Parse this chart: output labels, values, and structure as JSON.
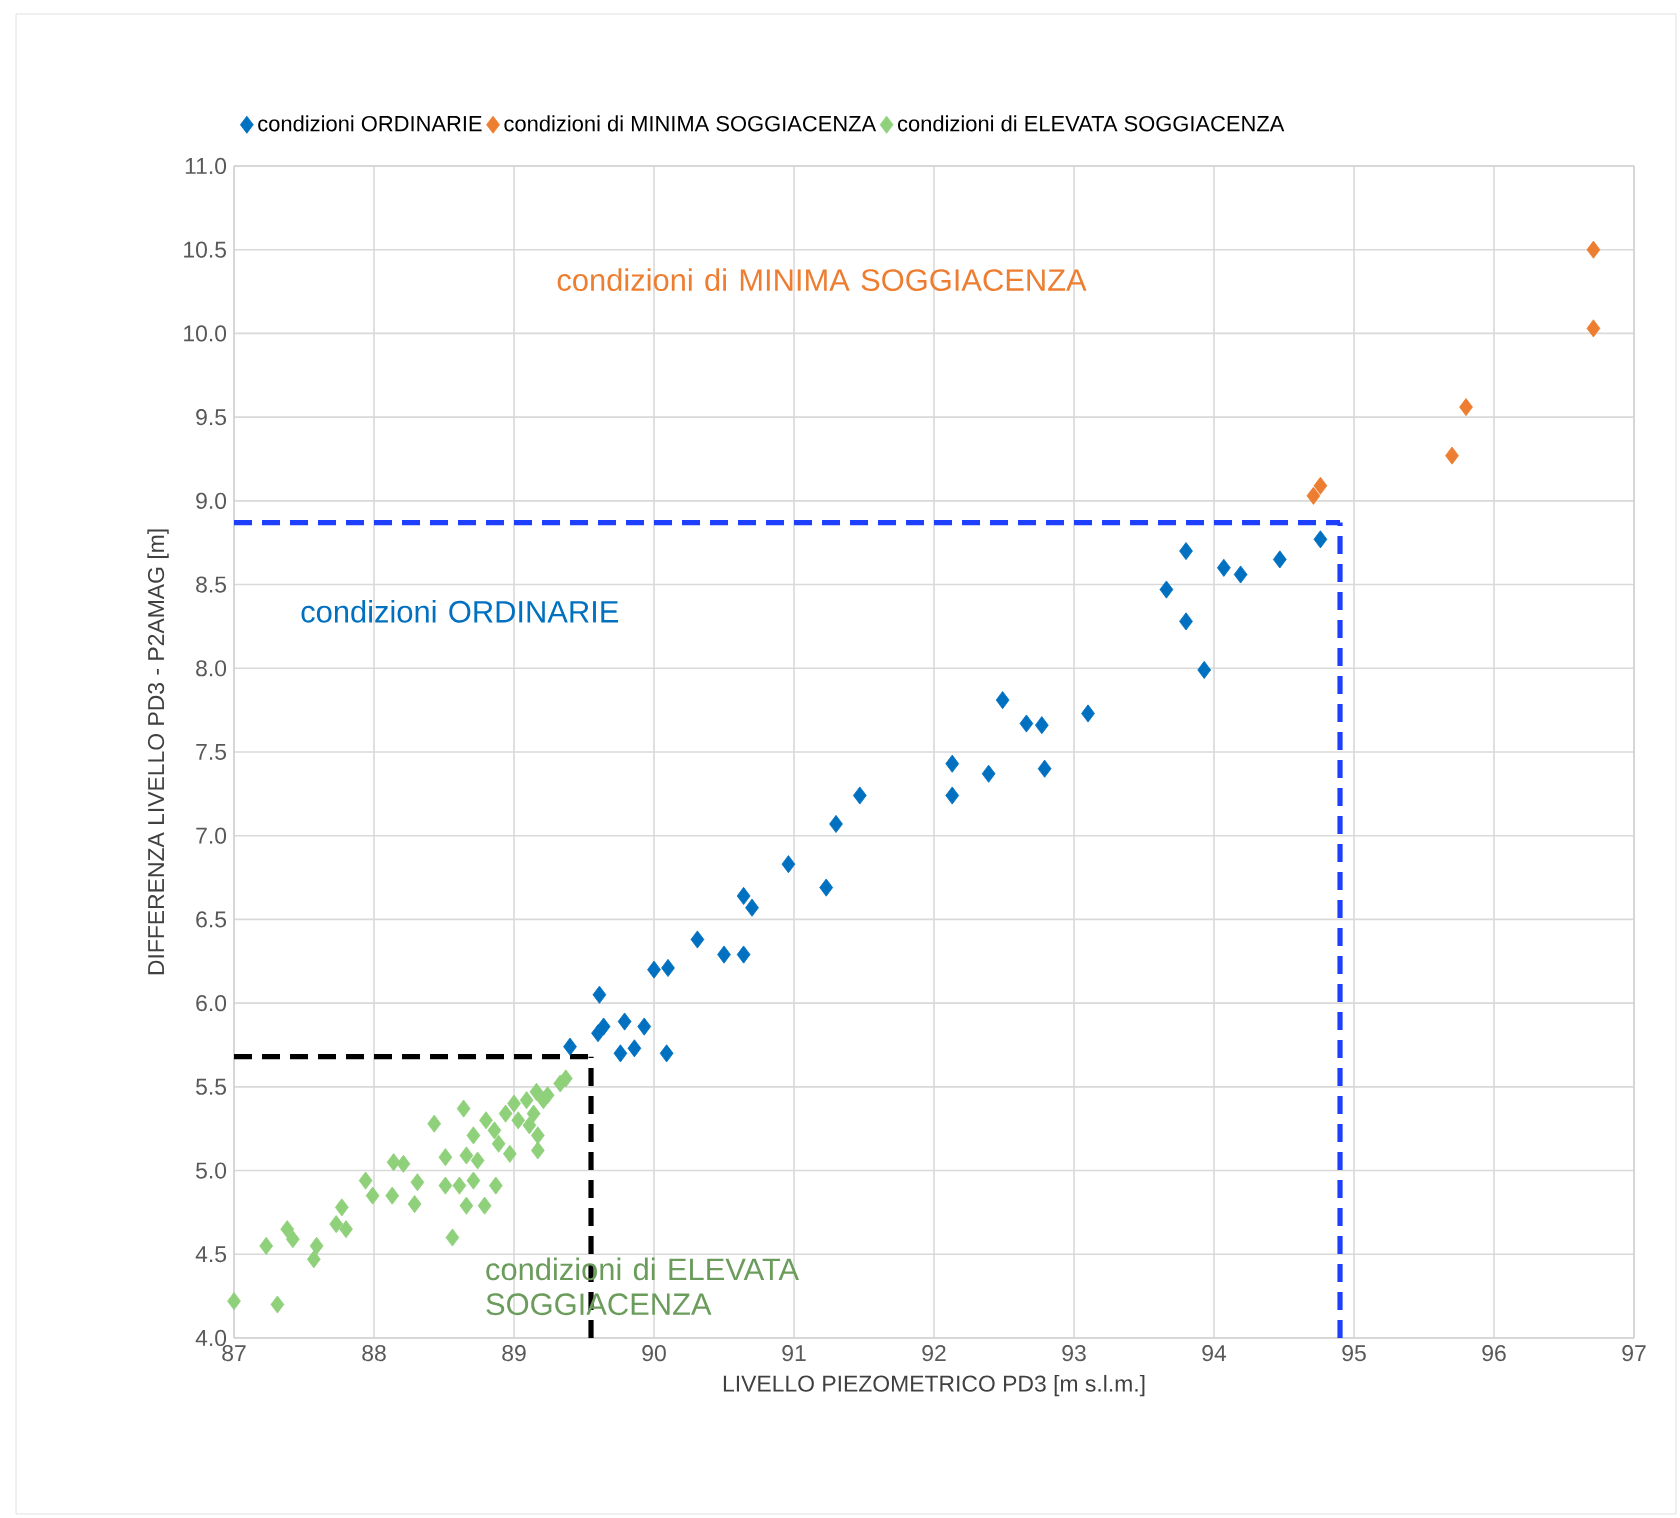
{
  "chart_data": {
    "type": "scatter",
    "xlabel": "LIVELLO PIEZOMETRICO PD3 [m s.l.m.]",
    "ylabel": "DIFFERENZA LIVELLO PD3 - P2AMAG [m]",
    "xlim": [
      87,
      97
    ],
    "ylim": [
      4,
      11
    ],
    "xticks": [
      87,
      88,
      89,
      90,
      91,
      92,
      93,
      94,
      95,
      96,
      97
    ],
    "yticks": [
      {
        "value": 4,
        "label": "4.0"
      },
      4.5,
      {
        "value": 5,
        "label": "5.0"
      },
      5.5,
      {
        "value": 6,
        "label": "6.0"
      },
      6.5,
      {
        "value": 7,
        "label": "7.0"
      },
      7.5,
      {
        "value": 8,
        "label": "8.0"
      },
      8.5,
      {
        "value": 9,
        "label": "9.0"
      },
      9.5,
      {
        "value": 10,
        "label": "10.0"
      },
      10.5,
      {
        "value": 11,
        "label": "11.0"
      }
    ],
    "grid": true,
    "legend": "top",
    "marker": "diamond",
    "series": [
      {
        "name": "condizioni ORDINARIE",
        "color": "#0070c0",
        "x": [
          94.76,
          93.8,
          93.8,
          93.66,
          93.93,
          94.07,
          94.19,
          94.47,
          92.49,
          92.66,
          92.77,
          92.79,
          93.1,
          92.13,
          92.13,
          92.39,
          91.47,
          91.3,
          91.23,
          90.96,
          90.64,
          90.7,
          90.31,
          90.5,
          90.64,
          90.0,
          90.1,
          89.61,
          89.6,
          89.64,
          89.79,
          89.93,
          89.76,
          89.86,
          90.09,
          89.4
        ],
        "values": [
          8.77,
          8.7,
          8.28,
          8.47,
          7.99,
          8.6,
          8.56,
          8.65,
          7.81,
          7.67,
          7.66,
          7.4,
          7.73,
          7.43,
          7.24,
          7.37,
          7.24,
          7.07,
          6.69,
          6.83,
          6.64,
          6.57,
          6.38,
          6.29,
          6.29,
          6.2,
          6.21,
          6.05,
          5.82,
          5.86,
          5.89,
          5.86,
          5.7,
          5.73,
          5.7,
          5.74
        ]
      },
      {
        "name": "condizioni di MINIMA SOGGIACENZA",
        "color": "#ed7d31",
        "x": [
          94.71,
          94.76,
          95.7,
          95.8,
          96.71,
          96.71
        ],
        "values": [
          9.03,
          9.09,
          9.27,
          9.56,
          10.5,
          10.03
        ]
      },
      {
        "name": "condizioni di ELEVATA SOGGIACENZA",
        "color": "#8fd07a",
        "x": [
          87.0,
          87.31,
          87.23,
          87.38,
          87.42,
          87.57,
          87.59,
          87.73,
          87.77,
          87.8,
          87.94,
          87.99,
          88.14,
          88.21,
          88.13,
          88.29,
          88.31,
          88.43,
          88.51,
          88.51,
          88.56,
          88.64,
          88.66,
          88.61,
          88.66,
          88.71,
          88.74,
          88.71,
          88.79,
          88.8,
          88.86,
          88.87,
          88.89,
          88.94,
          88.97,
          89.0,
          89.03,
          89.09,
          89.11,
          89.14,
          89.17,
          89.17,
          89.21,
          89.24,
          89.33,
          89.37,
          89.16
        ],
        "values": [
          4.22,
          4.2,
          4.55,
          4.65,
          4.59,
          4.47,
          4.55,
          4.68,
          4.78,
          4.65,
          4.94,
          4.85,
          5.05,
          5.04,
          4.85,
          4.8,
          4.93,
          5.28,
          5.08,
          4.91,
          4.6,
          5.37,
          5.09,
          4.91,
          4.79,
          5.21,
          5.06,
          4.94,
          4.79,
          5.3,
          5.24,
          4.91,
          5.16,
          5.34,
          5.1,
          5.4,
          5.3,
          5.42,
          5.27,
          5.34,
          5.21,
          5.12,
          5.42,
          5.45,
          5.52,
          5.55,
          5.47
        ]
      }
    ],
    "ref_lines": [
      {
        "axis": "y",
        "value": 8.87,
        "color": "#1f3fff",
        "line_style": "dashed"
      },
      {
        "axis": "x",
        "value": 94.9,
        "color": "#1f3fff",
        "line_style": "dashed"
      },
      {
        "axis": "y",
        "value": 5.68,
        "color": "#000000",
        "line_style": "dashed"
      },
      {
        "axis": "x",
        "value": 89.55,
        "color": "#000000",
        "line_style": "dashed"
      }
    ],
    "annotations": [
      "condizioni ORDINARIE",
      "condizioni di MINIMA SOGGIACENZA",
      "condizioni di ELEVATA SOGGIACENZA"
    ]
  }
}
